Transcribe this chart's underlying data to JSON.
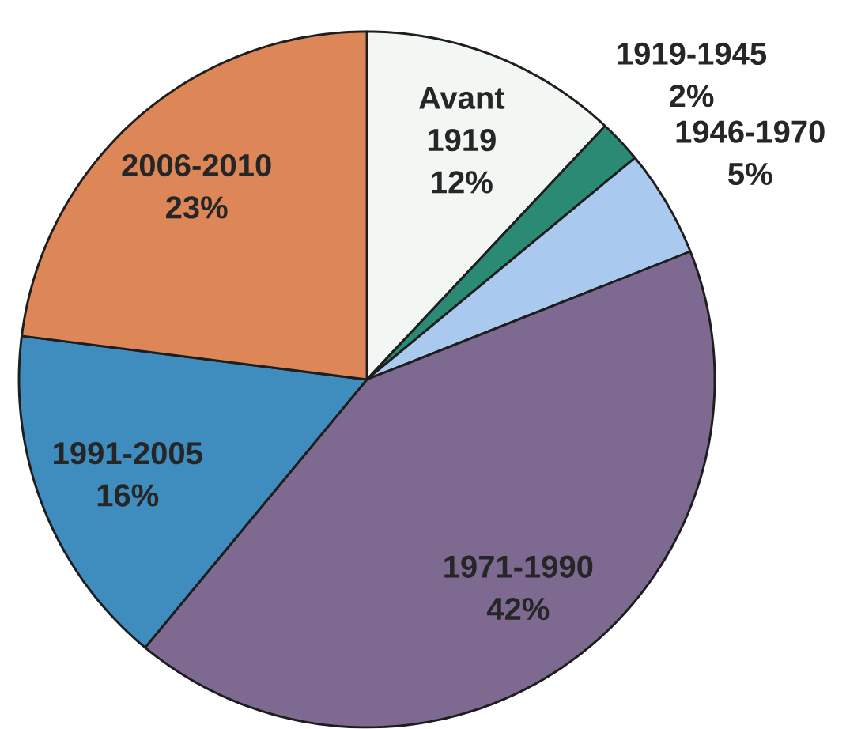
{
  "chart_data": {
    "type": "pie",
    "categories": [
      "Avant 1919",
      "1919-1945",
      "1946-1970",
      "1971-1990",
      "1991-2005",
      "2006-2010"
    ],
    "values": [
      12,
      2,
      5,
      42,
      16,
      23
    ],
    "colors": [
      "#f3f7f3",
      "#2a8a73",
      "#aac9ee",
      "#7e6a91",
      "#3f8cbf",
      "#dd8758"
    ],
    "value_labels": [
      "12%",
      "2%",
      "5%",
      "42%",
      "16%",
      "23%"
    ]
  }
}
